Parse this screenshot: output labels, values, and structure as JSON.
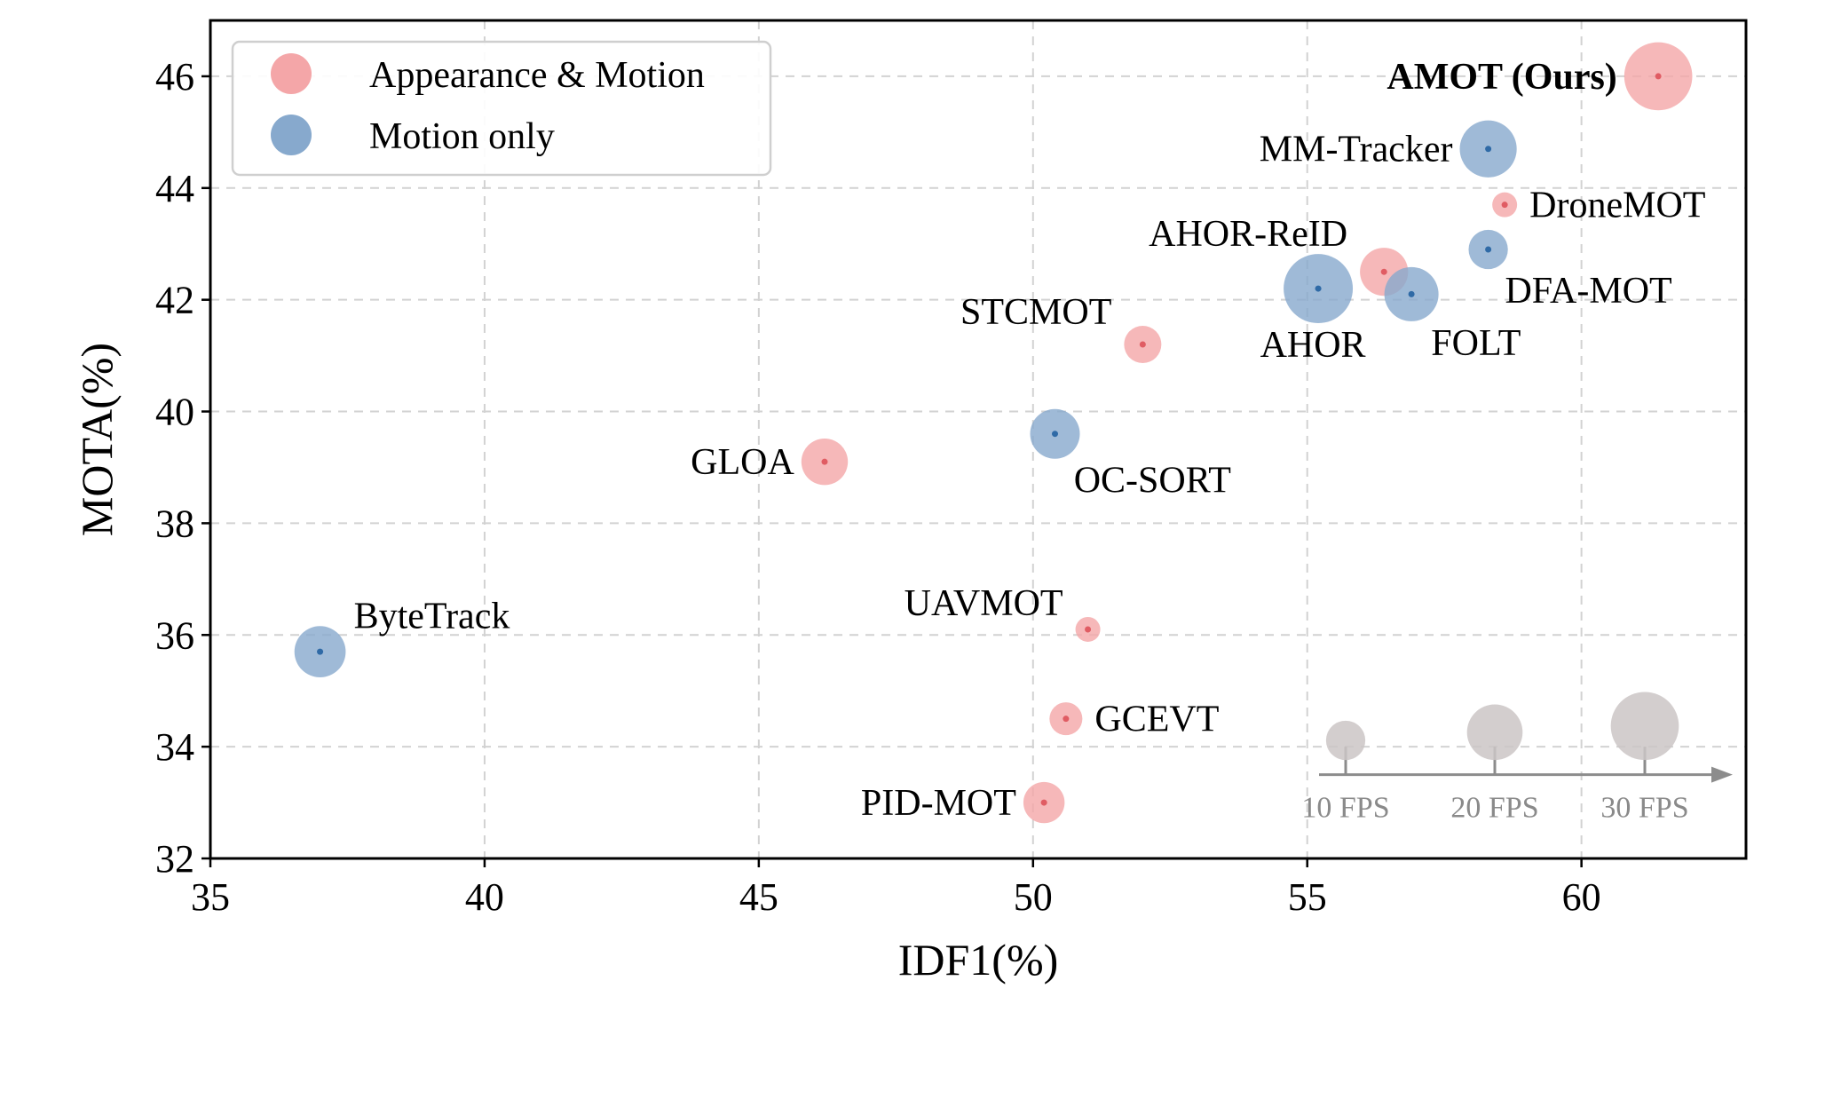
{
  "colors": {
    "appearance_motion": "#f4a6a8",
    "appearance_motion_dot": "#e05c63",
    "motion_only": "#87a9cd",
    "motion_only_dot": "#2f6aa6",
    "fps_ref": "#cbc5c5",
    "fps_axis": "#8c8c8c"
  },
  "chart_data": {
    "type": "scatter",
    "xlabel": "IDF1(%)",
    "ylabel": "MOTA(%)",
    "xlim": [
      35,
      63
    ],
    "ylim": [
      32,
      47
    ],
    "xticks": [
      35,
      40,
      45,
      50,
      55,
      60
    ],
    "yticks": [
      32,
      34,
      36,
      38,
      40,
      42,
      44,
      46
    ],
    "grid": true,
    "legend_position": "top-left",
    "legend": [
      {
        "key": "appearance_motion",
        "label": "Appearance & Motion"
      },
      {
        "key": "motion_only",
        "label": "Motion only"
      }
    ],
    "series": [
      {
        "name": "Appearance & Motion",
        "points": [
          {
            "label": "AMOT (Ours)",
            "x": 61.4,
            "y": 46.0,
            "fps": 30,
            "bold": true,
            "label_pos": "left"
          },
          {
            "label": "DroneMOT",
            "x": 58.6,
            "y": 43.7,
            "fps": 4,
            "label_pos": "right"
          },
          {
            "label": "AHOR-ReID",
            "x": 56.4,
            "y": 42.5,
            "fps": 15,
            "label_pos": "topleft"
          },
          {
            "label": "STCMOT",
            "x": 52.0,
            "y": 41.2,
            "fps": 9,
            "label_pos": "topleft"
          },
          {
            "label": "GLOA",
            "x": 46.2,
            "y": 39.1,
            "fps": 14,
            "label_pos": "left"
          },
          {
            "label": "UAVMOT",
            "x": 51.0,
            "y": 36.1,
            "fps": 4,
            "label_pos": "topleft"
          },
          {
            "label": "GCEVT",
            "x": 50.6,
            "y": 34.5,
            "fps": 7,
            "label_pos": "right"
          },
          {
            "label": "PID-MOT",
            "x": 50.2,
            "y": 33.0,
            "fps": 11,
            "label_pos": "left"
          }
        ]
      },
      {
        "name": "Motion only",
        "points": [
          {
            "label": "MM-Tracker",
            "x": 58.3,
            "y": 44.7,
            "fps": 21,
            "label_pos": "left"
          },
          {
            "label": "DFA-MOT",
            "x": 58.3,
            "y": 42.9,
            "fps": 10,
            "label_pos": "bottomright"
          },
          {
            "label": "AHOR",
            "x": 55.2,
            "y": 42.2,
            "fps": 31,
            "label_pos": "below"
          },
          {
            "label": "FOLT",
            "x": 56.9,
            "y": 42.1,
            "fps": 19,
            "label_pos": "bottomright"
          },
          {
            "label": "OC-SORT",
            "x": 50.4,
            "y": 39.6,
            "fps": 16,
            "label_pos": "bottomright"
          },
          {
            "label": "ByteTrack",
            "x": 37.0,
            "y": 35.7,
            "fps": 17,
            "label_pos": "topright"
          }
        ]
      }
    ],
    "size_reference": {
      "labels": [
        "10 FPS",
        "20 FPS",
        "30 FPS"
      ],
      "fps": [
        10,
        20,
        30
      ]
    }
  }
}
